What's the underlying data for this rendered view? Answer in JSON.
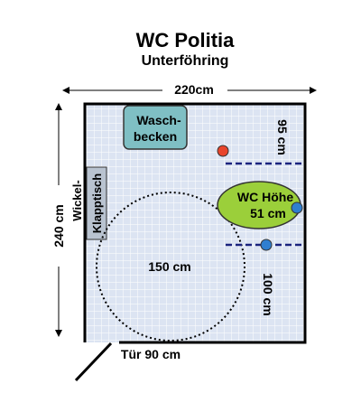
{
  "title": "WC Politia",
  "subtitle": "Unterföhring",
  "dimensions": {
    "width_label": "220cm",
    "height_label": "240 cm",
    "turning_circle_label": "150 cm",
    "door_label": "Tür 90 cm",
    "top_clearance_label": "95 cm",
    "bottom_clearance_label": "100 cm"
  },
  "fixtures": {
    "sink_line1": "Wasch-",
    "sink_line2": "becken",
    "changing_table_line1": "Wickel-",
    "changing_table_line2": "Klapptisch",
    "wc_line1": "WC Höhe",
    "wc_line2": "51 cm"
  },
  "colors": {
    "floor_tile": "#dce4f2",
    "grid_line": "#ffffff",
    "wall": "#000000",
    "sink_fill": "#7fbfc4",
    "changing_table_fill": "#b9c3d0",
    "wc_fill": "#9bcf3a",
    "emergency_button": "#e8452c",
    "grab_bar_button": "#2f7fd0",
    "clearance_line": "#1a237e"
  }
}
